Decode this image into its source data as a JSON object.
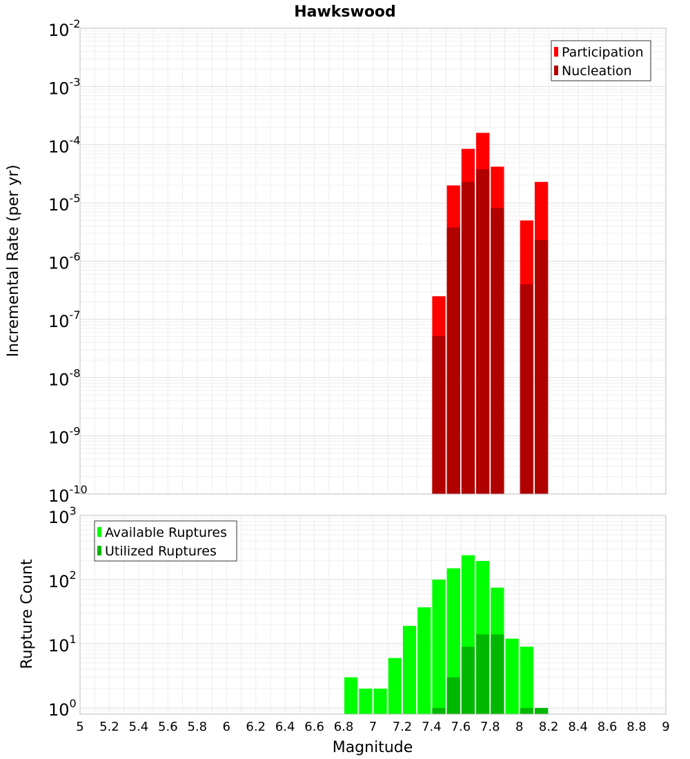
{
  "chart_data": [
    {
      "type": "bar",
      "title": "Hawkswood",
      "xlabel": "Magnitude",
      "ylabel": "Incremental Rate (per yr)",
      "yscale": "log",
      "xlim": [
        5,
        9
      ],
      "ylim": [
        1e-10,
        0.01
      ],
      "bin_width": 0.1,
      "y_ticks": [
        {
          "base": "10",
          "exp": "-2"
        },
        {
          "base": "10",
          "exp": "-3"
        },
        {
          "base": "10",
          "exp": "-4"
        },
        {
          "base": "10",
          "exp": "-5"
        },
        {
          "base": "10",
          "exp": "-6"
        },
        {
          "base": "10",
          "exp": "-7"
        },
        {
          "base": "10",
          "exp": "-8"
        },
        {
          "base": "10",
          "exp": "-9"
        },
        {
          "base": "10",
          "exp": "-10"
        }
      ],
      "x": [
        7.45,
        7.55,
        7.65,
        7.75,
        7.85,
        8.05,
        8.15
      ],
      "series": [
        {
          "name": "Participation",
          "color": "#ff0000",
          "values": [
            2.5e-07,
            2e-05,
            8.5e-05,
            0.00016,
            4.2e-05,
            5e-06,
            2.3e-05
          ]
        },
        {
          "name": "Nucleation",
          "color": "#b00000",
          "values": [
            5.2e-08,
            3.8e-06,
            2.3e-05,
            3.8e-05,
            8.2e-06,
            4e-07,
            2.3e-06
          ]
        }
      ],
      "legend_position": "top-right",
      "grid": true
    },
    {
      "type": "bar",
      "xlabel": "Magnitude",
      "ylabel": "Rupture Count",
      "yscale": "log",
      "xlim": [
        5,
        9
      ],
      "ylim": [
        0.8,
        1000
      ],
      "bin_width": 0.1,
      "y_ticks": [
        {
          "base": "10",
          "exp": "3"
        },
        {
          "base": "10",
          "exp": "2"
        },
        {
          "base": "10",
          "exp": "1"
        },
        {
          "base": "10",
          "exp": "0"
        }
      ],
      "x_ticks": [
        "5",
        "5.2",
        "5.4",
        "5.6",
        "5.8",
        "6",
        "6.2",
        "6.4",
        "6.6",
        "6.8",
        "7",
        "7.2",
        "7.4",
        "7.6",
        "7.8",
        "8",
        "8.2",
        "8.4",
        "8.6",
        "8.8",
        "9"
      ],
      "x": [
        6.85,
        6.95,
        7.05,
        7.15,
        7.25,
        7.35,
        7.45,
        7.55,
        7.65,
        7.75,
        7.85,
        7.95,
        8.05,
        8.15
      ],
      "series": [
        {
          "name": "Available Ruptures",
          "color": "#00ff00",
          "values": [
            3,
            2,
            2,
            6,
            19,
            37,
            100,
            150,
            240,
            195,
            75,
            12,
            9,
            1
          ]
        },
        {
          "name": "Utilized Ruptures",
          "color": "#00b800",
          "values": [
            null,
            null,
            null,
            null,
            null,
            null,
            1,
            3,
            9,
            14,
            14,
            null,
            1,
            1
          ]
        }
      ],
      "legend_position": "top-left",
      "grid": true
    }
  ]
}
